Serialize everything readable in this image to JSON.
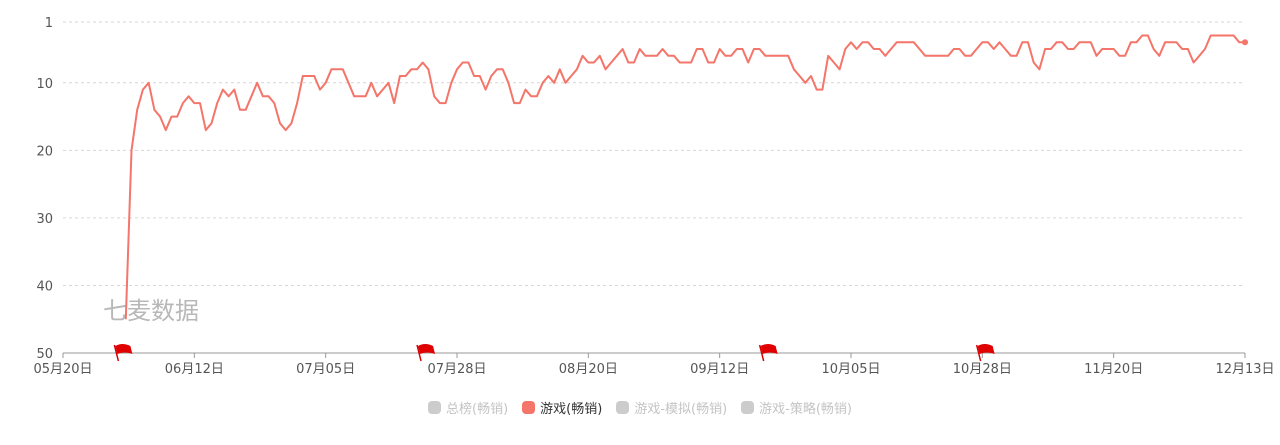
{
  "watermark": "七麦数据",
  "legend": [
    {
      "label": "总榜(畅销)",
      "color": "#cccccc",
      "active": false
    },
    {
      "label": "游戏(畅销)",
      "color": "#f4756a",
      "active": true
    },
    {
      "label": "游戏-模拟(畅销)",
      "color": "#cccccc",
      "active": false
    },
    {
      "label": "游戏-策略(畅销)",
      "color": "#cccccc",
      "active": false
    }
  ],
  "chart_data": {
    "type": "line",
    "title": "",
    "xlabel": "",
    "ylabel": "",
    "y_inverted": true,
    "ylim": [
      1,
      50
    ],
    "y_ticks": [
      1,
      10,
      20,
      30,
      40,
      50
    ],
    "x_ticks": [
      "05月20日",
      "06月12日",
      "07月05日",
      "07月28日",
      "08月20日",
      "09月12日",
      "10月05日",
      "10月28日",
      "11月20日",
      "12月13日"
    ],
    "grid": true,
    "legend_position": "bottom",
    "markers": [
      {
        "label": "flag",
        "date": "05月29日"
      },
      {
        "label": "flag",
        "date": "07月21日"
      },
      {
        "label": "flag",
        "date": "09月19日"
      },
      {
        "label": "flag",
        "date": "10月27日"
      }
    ],
    "series": [
      {
        "name": "游戏(畅销)",
        "color": "#f4756a",
        "points": [
          [
            "05月31日",
            45
          ],
          [
            "06月01日",
            20
          ],
          [
            "06月02日",
            14
          ],
          [
            "06月03日",
            11
          ],
          [
            "06月04日",
            10
          ],
          [
            "06月05日",
            14
          ],
          [
            "06月06日",
            15
          ],
          [
            "06月07日",
            17
          ],
          [
            "06月08日",
            15
          ],
          [
            "06月09日",
            15
          ],
          [
            "06月10日",
            13
          ],
          [
            "06月11日",
            12
          ],
          [
            "06月12日",
            13
          ],
          [
            "06月13日",
            13
          ],
          [
            "06月14日",
            17
          ],
          [
            "06月15日",
            16
          ],
          [
            "06月16日",
            13
          ],
          [
            "06月17日",
            11
          ],
          [
            "06月18日",
            12
          ],
          [
            "06月19日",
            11
          ],
          [
            "06月20日",
            14
          ],
          [
            "06月21日",
            14
          ],
          [
            "06月22日",
            12
          ],
          [
            "06月23日",
            10
          ],
          [
            "06月24日",
            12
          ],
          [
            "06月25日",
            12
          ],
          [
            "06月26日",
            13
          ],
          [
            "06月27日",
            16
          ],
          [
            "06月28日",
            17
          ],
          [
            "06月29日",
            16
          ],
          [
            "06月30日",
            13
          ],
          [
            "07月01日",
            9
          ],
          [
            "07月02日",
            9
          ],
          [
            "07月03日",
            9
          ],
          [
            "07月04日",
            11
          ],
          [
            "07月05日",
            10
          ],
          [
            "07月06日",
            8
          ],
          [
            "07月07日",
            8
          ],
          [
            "07月08日",
            8
          ],
          [
            "07月09日",
            10
          ],
          [
            "07月10日",
            12
          ],
          [
            "07月11日",
            12
          ],
          [
            "07月12日",
            12
          ],
          [
            "07月13日",
            10
          ],
          [
            "07月14日",
            12
          ],
          [
            "07月15日",
            11
          ],
          [
            "07月16日",
            10
          ],
          [
            "07月17日",
            13
          ],
          [
            "07月18日",
            9
          ],
          [
            "07月19日",
            9
          ],
          [
            "07月20日",
            8
          ],
          [
            "07月21日",
            8
          ],
          [
            "07月22日",
            7
          ],
          [
            "07月23日",
            8
          ],
          [
            "07月24日",
            12
          ],
          [
            "07月25日",
            13
          ],
          [
            "07月26日",
            13
          ],
          [
            "07月27日",
            10
          ],
          [
            "07月28日",
            8
          ],
          [
            "07月29日",
            7
          ],
          [
            "07月30日",
            7
          ],
          [
            "07月31日",
            9
          ],
          [
            "08月01日",
            9
          ],
          [
            "08月02日",
            11
          ],
          [
            "08月03日",
            9
          ],
          [
            "08月04日",
            8
          ],
          [
            "08月05日",
            8
          ],
          [
            "08月06日",
            10
          ],
          [
            "08月07日",
            13
          ],
          [
            "08月08日",
            13
          ],
          [
            "08月09日",
            11
          ],
          [
            "08月10日",
            12
          ],
          [
            "08月11日",
            12
          ],
          [
            "08月12日",
            10
          ],
          [
            "08月13日",
            9
          ],
          [
            "08月14日",
            10
          ],
          [
            "08月15日",
            8
          ],
          [
            "08月16日",
            10
          ],
          [
            "08月17日",
            9
          ],
          [
            "08月18日",
            8
          ],
          [
            "08月19日",
            6
          ],
          [
            "08月20日",
            7
          ],
          [
            "08月21日",
            7
          ],
          [
            "08月22日",
            6
          ],
          [
            "08月23日",
            8
          ],
          [
            "08月24日",
            7
          ],
          [
            "08月25日",
            6
          ],
          [
            "08月26日",
            5
          ],
          [
            "08月27日",
            7
          ],
          [
            "08月28日",
            7
          ],
          [
            "08月29日",
            5
          ],
          [
            "08月30日",
            6
          ],
          [
            "08月31日",
            6
          ],
          [
            "09月01日",
            6
          ],
          [
            "09月02日",
            5
          ],
          [
            "09月03日",
            6
          ],
          [
            "09月04日",
            6
          ],
          [
            "09月05日",
            7
          ],
          [
            "09月06日",
            7
          ],
          [
            "09月07日",
            7
          ],
          [
            "09月08日",
            5
          ],
          [
            "09月09日",
            5
          ],
          [
            "09月10日",
            7
          ],
          [
            "09月11日",
            7
          ],
          [
            "09月12日",
            5
          ],
          [
            "09月13日",
            6
          ],
          [
            "09月14日",
            6
          ],
          [
            "09月15日",
            5
          ],
          [
            "09月16日",
            5
          ],
          [
            "09月17日",
            7
          ],
          [
            "09月18日",
            5
          ],
          [
            "09月19日",
            5
          ],
          [
            "09月20日",
            6
          ],
          [
            "09月21日",
            6
          ],
          [
            "09月22日",
            6
          ],
          [
            "09月23日",
            6
          ],
          [
            "09月24日",
            6
          ],
          [
            "09月25日",
            8
          ],
          [
            "09月26日",
            9
          ],
          [
            "09月27日",
            10
          ],
          [
            "09月28日",
            9
          ],
          [
            "09月29日",
            11
          ],
          [
            "09月30日",
            11
          ],
          [
            "10月01日",
            6
          ],
          [
            "10月02日",
            7
          ],
          [
            "10月03日",
            8
          ],
          [
            "10月04日",
            5
          ],
          [
            "10月05日",
            4
          ],
          [
            "10月06日",
            5
          ],
          [
            "10月07日",
            4
          ],
          [
            "10月08日",
            4
          ],
          [
            "10月09日",
            5
          ],
          [
            "10月10日",
            5
          ],
          [
            "10月11日",
            6
          ],
          [
            "10月12日",
            5
          ],
          [
            "10月13日",
            4
          ],
          [
            "10月14日",
            4
          ],
          [
            "10月15日",
            4
          ],
          [
            "10月16日",
            4
          ],
          [
            "10月17日",
            5
          ],
          [
            "10月18日",
            6
          ],
          [
            "10月19日",
            6
          ],
          [
            "10月20日",
            6
          ],
          [
            "10月21日",
            6
          ],
          [
            "10月22日",
            6
          ],
          [
            "10月23日",
            5
          ],
          [
            "10月24日",
            5
          ],
          [
            "10月25日",
            6
          ],
          [
            "10月26日",
            6
          ],
          [
            "10月27日",
            5
          ],
          [
            "10月28日",
            4
          ],
          [
            "10月29日",
            4
          ],
          [
            "10月30日",
            5
          ],
          [
            "10月31日",
            4
          ],
          [
            "11月01日",
            5
          ],
          [
            "11月02日",
            6
          ],
          [
            "11月03日",
            6
          ],
          [
            "11月04日",
            4
          ],
          [
            "11月05日",
            4
          ],
          [
            "11月06日",
            7
          ],
          [
            "11月07日",
            8
          ],
          [
            "11月08日",
            5
          ],
          [
            "11月09日",
            5
          ],
          [
            "11月10日",
            4
          ],
          [
            "11月11日",
            4
          ],
          [
            "11月12日",
            5
          ],
          [
            "11月13日",
            5
          ],
          [
            "11月14日",
            4
          ],
          [
            "11月15日",
            4
          ],
          [
            "11月16日",
            4
          ],
          [
            "11月17日",
            6
          ],
          [
            "11月18日",
            5
          ],
          [
            "11月19日",
            5
          ],
          [
            "11月20日",
            5
          ],
          [
            "11月21日",
            6
          ],
          [
            "11月22日",
            6
          ],
          [
            "11月23日",
            4
          ],
          [
            "11月24日",
            4
          ],
          [
            "11月25日",
            3
          ],
          [
            "11月26日",
            3
          ],
          [
            "11月27日",
            5
          ],
          [
            "11月28日",
            6
          ],
          [
            "11月29日",
            4
          ],
          [
            "11月30日",
            4
          ],
          [
            "12月01日",
            4
          ],
          [
            "12月02日",
            5
          ],
          [
            "12月03日",
            5
          ],
          [
            "12月04日",
            7
          ],
          [
            "12月05日",
            6
          ],
          [
            "12月06日",
            5
          ],
          [
            "12月07日",
            3
          ],
          [
            "12月08日",
            3
          ],
          [
            "12月09日",
            3
          ],
          [
            "12月10日",
            3
          ],
          [
            "12月11日",
            3
          ],
          [
            "12月12日",
            4
          ],
          [
            "12月13日",
            4
          ]
        ]
      }
    ]
  }
}
